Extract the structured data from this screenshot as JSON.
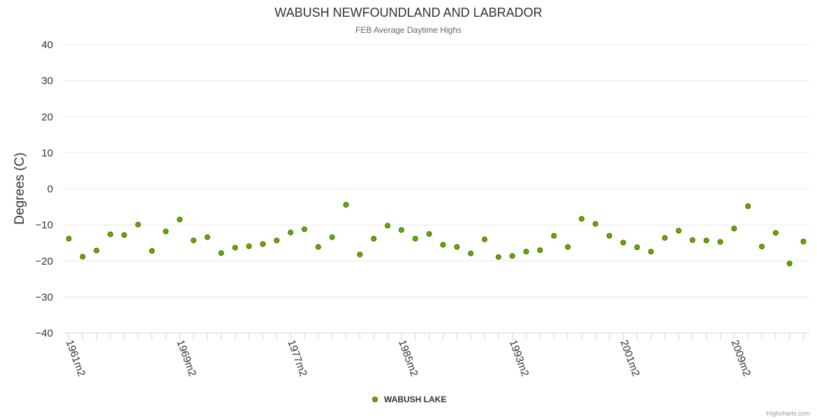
{
  "chart_data": {
    "type": "scatter",
    "title": "WABUSH NEWFOUNDLAND AND LABRADOR",
    "subtitle": "FEB Average Daytime Highs",
    "ylabel": "Degrees (C)",
    "xlabel": "",
    "ylim": [
      -40,
      40
    ],
    "yticks": [
      40,
      30,
      20,
      10,
      0,
      -10,
      -20,
      -30,
      -40
    ],
    "ytick_labels": [
      "40",
      "30",
      "20",
      "10",
      "0",
      "−10",
      "−20",
      "−30",
      "−40"
    ],
    "grid": true,
    "x_start_year": 1961,
    "x_label_every": 8,
    "x_labels": [
      "1961m2",
      "1969m2",
      "1977m2",
      "1985m2",
      "1993m2",
      "2001m2",
      "2009m2"
    ],
    "series": [
      {
        "name": "WABUSH LAKE",
        "color": "#66aa00",
        "border_color": "#3d6600",
        "x": [
          "1961m2",
          "1962m2",
          "1963m2",
          "1964m2",
          "1965m2",
          "1966m2",
          "1967m2",
          "1968m2",
          "1969m2",
          "1970m2",
          "1971m2",
          "1972m2",
          "1973m2",
          "1974m2",
          "1975m2",
          "1976m2",
          "1977m2",
          "1978m2",
          "1979m2",
          "1980m2",
          "1981m2",
          "1982m2",
          "1983m2",
          "1984m2",
          "1985m2",
          "1986m2",
          "1987m2",
          "1988m2",
          "1989m2",
          "1990m2",
          "1991m2",
          "1992m2",
          "1993m2",
          "1994m2",
          "1995m2",
          "1996m2",
          "1997m2",
          "1998m2",
          "1999m2",
          "2000m2",
          "2001m2",
          "2002m2",
          "2003m2",
          "2004m2",
          "2005m2",
          "2006m2",
          "2007m2",
          "2008m2",
          "2009m2",
          "2010m2",
          "2011m2",
          "2012m2",
          "2013m2",
          "2014m2"
        ],
        "values": [
          -13.8,
          -18.8,
          -17.1,
          -12.6,
          -12.8,
          -9.9,
          -17.2,
          -11.8,
          -8.5,
          -14.3,
          -13.4,
          -17.8,
          -16.3,
          -15.9,
          -15.3,
          -14.3,
          -12.1,
          -11.2,
          -16.1,
          -13.4,
          -4.4,
          -18.2,
          -13.8,
          -10.2,
          -11.4,
          -13.8,
          -12.5,
          -15.5,
          -16.1,
          -17.9,
          -14.0,
          -18.9,
          -18.6,
          -17.4,
          -17.0,
          -13.0,
          -16.1,
          -8.3,
          -9.7,
          -13.0,
          -14.9,
          -16.2,
          -17.4,
          -13.6,
          -11.6,
          -14.2,
          -14.3,
          -14.7,
          -11.0,
          -4.8,
          -16.0,
          -12.2,
          -20.7,
          -14.6
        ]
      }
    ],
    "legend": {
      "position": "bottom-center"
    }
  },
  "credits": "Highcharts.com"
}
